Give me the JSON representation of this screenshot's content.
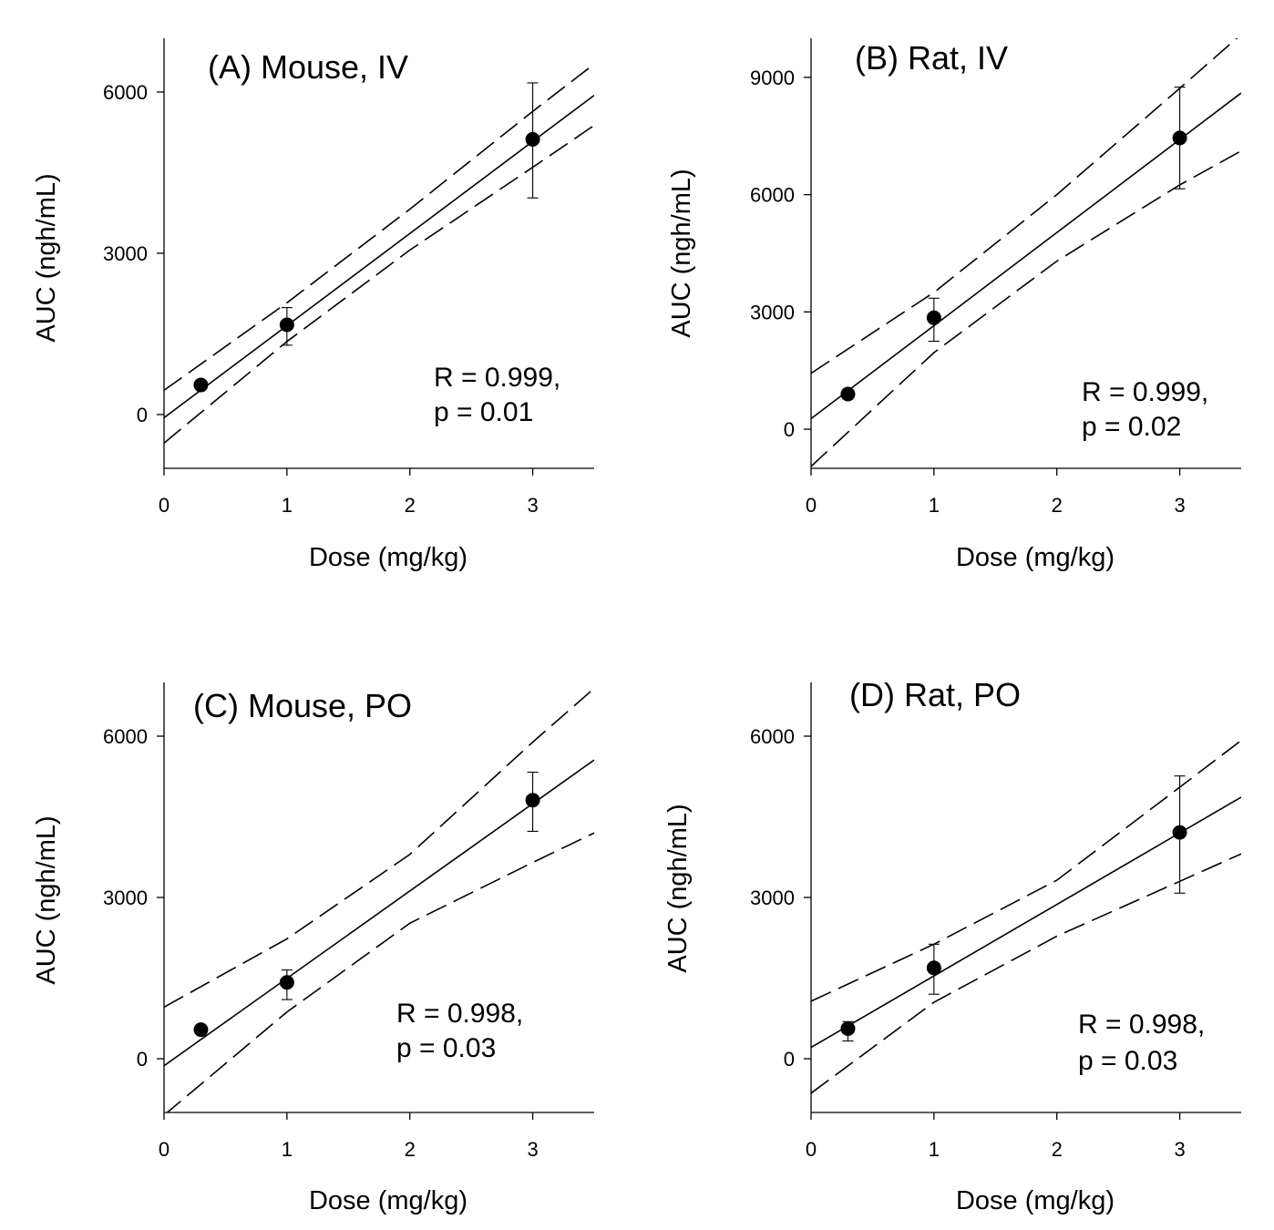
{
  "chart_data": [
    {
      "type": "scatter",
      "panel": "A",
      "title": "(A) Mouse, IV",
      "xlabel": "Dose (mg/kg)",
      "ylabel": "AUC (ngh/mL)",
      "xlim": [
        0,
        3.5
      ],
      "ylim": [
        -1000,
        7000
      ],
      "xticks": [
        0,
        1,
        2,
        3
      ],
      "yticks": [
        0,
        3000,
        6000
      ],
      "points": [
        {
          "x": 0.3,
          "y": 550,
          "err_low": null,
          "err_high": null
        },
        {
          "x": 1,
          "y": 1670,
          "err_low": 1290,
          "err_high": 1990
        },
        {
          "x": 3,
          "y": 5120,
          "err_low": 4030,
          "err_high": 6170
        }
      ],
      "fit": {
        "slope": 1714,
        "intercept": -60
      },
      "ci_upper": [
        [
          0,
          450
        ],
        [
          1.0,
          2080
        ],
        [
          2.0,
          3820
        ],
        [
          3.0,
          5640
        ],
        [
          3.5,
          6520
        ]
      ],
      "ci_lower": [
        [
          0,
          -530
        ],
        [
          1.0,
          1360
        ],
        [
          2.0,
          3060
        ],
        [
          3.0,
          4600
        ],
        [
          3.5,
          5380
        ]
      ],
      "stats": [
        "R = 0.999,",
        "p = 0.01"
      ]
    },
    {
      "type": "scatter",
      "panel": "B",
      "title": "(B) Rat, IV",
      "xlabel": "Dose (mg/kg)",
      "ylabel": "AUC (ngh/mL)",
      "xlim": [
        0,
        3.5
      ],
      "ylim": [
        -1000,
        10000
      ],
      "xticks": [
        0,
        1,
        2,
        3
      ],
      "yticks": [
        0,
        3000,
        6000,
        9000
      ],
      "points": [
        {
          "x": 0.3,
          "y": 900,
          "err_low": 780,
          "err_high": 1010
        },
        {
          "x": 1,
          "y": 2850,
          "err_low": 2250,
          "err_high": 3350
        },
        {
          "x": 3,
          "y": 7450,
          "err_low": 6150,
          "err_high": 8750
        }
      ],
      "fit": {
        "slope": 2380,
        "intercept": 270
      },
      "ci_upper": [
        [
          0,
          1430
        ],
        [
          1.0,
          3500
        ],
        [
          2.0,
          6000
        ],
        [
          3.0,
          8720
        ],
        [
          3.5,
          10100
        ]
      ],
      "ci_lower": [
        [
          0,
          -950
        ],
        [
          1.0,
          1960
        ],
        [
          2.0,
          4300
        ],
        [
          3.0,
          6250
        ],
        [
          3.5,
          7120
        ]
      ],
      "stats": [
        "R = 0.999,",
        "p = 0.02"
      ]
    },
    {
      "type": "scatter",
      "panel": "C",
      "title": "(C) Mouse, PO",
      "xlabel": "Dose (mg/kg)",
      "ylabel": "AUC (ngh/mL)",
      "xlim": [
        0,
        3.5
      ],
      "ylim": [
        -1000,
        7000
      ],
      "xticks": [
        0,
        1,
        2,
        3
      ],
      "yticks": [
        0,
        3000,
        6000
      ],
      "points": [
        {
          "x": 0.3,
          "y": 540,
          "err_low": null,
          "err_high": null
        },
        {
          "x": 1,
          "y": 1420,
          "err_low": 1100,
          "err_high": 1650
        },
        {
          "x": 3,
          "y": 4810,
          "err_low": 4230,
          "err_high": 5330
        }
      ],
      "fit": {
        "slope": 1625,
        "intercept": -130
      },
      "ci_upper": [
        [
          0,
          960
        ],
        [
          1.0,
          2230
        ],
        [
          2.0,
          3800
        ],
        [
          3.0,
          5890
        ],
        [
          3.5,
          6890
        ]
      ],
      "ci_lower": [
        [
          0,
          -1050
        ],
        [
          1.0,
          870
        ],
        [
          2.0,
          2520
        ],
        [
          3.0,
          3650
        ],
        [
          3.5,
          4200
        ]
      ],
      "stats": [
        "R = 0.998,",
        "p = 0.03"
      ]
    },
    {
      "type": "scatter",
      "panel": "D",
      "title": "(D) Rat, PO",
      "xlabel": "Dose (mg/kg)",
      "ylabel": "AUC (ngh/mL)",
      "xlim": [
        0,
        3.5
      ],
      "ylim": [
        -1000,
        7000
      ],
      "xticks": [
        0,
        1,
        2,
        3
      ],
      "yticks": [
        0,
        3000,
        6000
      ],
      "points": [
        {
          "x": 0.3,
          "y": 560,
          "err_low": 330,
          "err_high": 690
        },
        {
          "x": 1,
          "y": 1690,
          "err_low": 1200,
          "err_high": 2130
        },
        {
          "x": 3,
          "y": 4210,
          "err_low": 3080,
          "err_high": 5260
        }
      ],
      "fit": {
        "slope": 1330,
        "intercept": 210
      },
      "ci_upper": [
        [
          0,
          1070
        ],
        [
          1.0,
          2130
        ],
        [
          2.0,
          3320
        ],
        [
          3.0,
          5050
        ],
        [
          3.5,
          5920
        ]
      ],
      "ci_lower": [
        [
          0,
          -640
        ],
        [
          1.0,
          1050
        ],
        [
          2.0,
          2280
        ],
        [
          3.0,
          3300
        ],
        [
          3.5,
          3810
        ]
      ],
      "stats": [
        "R = 0.998,",
        "p = 0.03"
      ]
    }
  ]
}
